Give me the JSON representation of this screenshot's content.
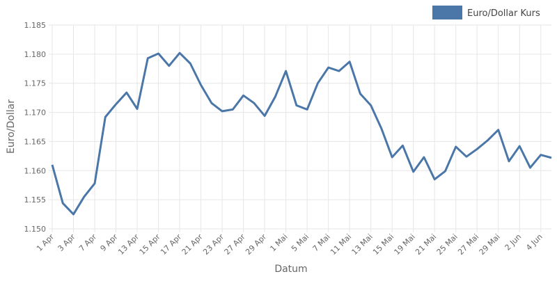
{
  "chart_data": {
    "type": "line",
    "x_label": "Datum",
    "y_label": "Euro/Dollar",
    "categories": [
      "1 Apr",
      null,
      "3 Apr",
      null,
      "7 Apr",
      null,
      "9 Apr",
      null,
      "13 Apr",
      null,
      "15 Apr",
      null,
      "17 Apr",
      null,
      "21 Apr",
      null,
      "23 Apr",
      null,
      "27 Apr",
      null,
      "29 Apr",
      null,
      "1 Mai",
      null,
      "5 Mai",
      null,
      "7 Mai",
      null,
      "11 Mai",
      null,
      "13 Mai",
      null,
      "15 Mai",
      null,
      "19 Mai",
      null,
      "21 Mai",
      null,
      "25 Mai",
      null,
      "27 Mai",
      null,
      "29 Mai",
      null,
      "2 Jun",
      null,
      "4 Jun",
      null
    ],
    "series": [
      {
        "name": "Euro/Dollar Kurs",
        "color": "#4a76a8",
        "values": [
          1.161,
          1.1544,
          1.1525,
          1.1555,
          1.1578,
          1.1692,
          1.1714,
          1.1734,
          1.1706,
          1.1793,
          1.1801,
          1.178,
          1.1802,
          1.1784,
          1.1747,
          1.1716,
          1.1702,
          1.1705,
          1.1729,
          1.1716,
          1.1694,
          1.1727,
          1.1771,
          1.1712,
          1.1705,
          1.175,
          1.1777,
          1.1771,
          1.1787,
          1.1732,
          1.1712,
          1.1672,
          1.1623,
          1.1643,
          1.1598,
          1.1623,
          1.1585,
          1.1599,
          1.1641,
          1.1624,
          1.1637,
          1.1652,
          1.167,
          1.1616,
          1.1642,
          1.1605,
          1.1627,
          1.1622
        ]
      }
    ],
    "ylim": [
      1.15,
      1.185
    ],
    "yticks": [
      {
        "value": 1.15,
        "label": "1.150"
      },
      1.155,
      {
        "value": 1.16,
        "label": "1.160"
      },
      1.165,
      {
        "value": 1.17,
        "label": "1.170"
      },
      1.175,
      {
        "value": 1.18,
        "label": "1.180"
      },
      1.185
    ],
    "grid": true,
    "legend": "top-right"
  }
}
